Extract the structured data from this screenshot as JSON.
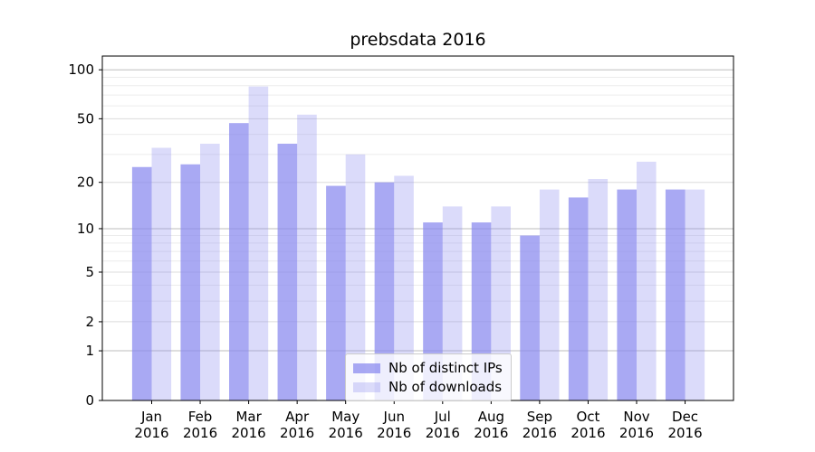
{
  "chart_data": {
    "type": "bar",
    "title": "prebsdata 2016",
    "categories": [
      "Jan",
      "Feb",
      "Mar",
      "Apr",
      "May",
      "Jun",
      "Jul",
      "Aug",
      "Sep",
      "Oct",
      "Nov",
      "Dec"
    ],
    "x_year_line": "2016",
    "series": [
      {
        "name": "Nb of distinct IPs",
        "color": "#8888ee",
        "alpha": 0.72,
        "values": [
          25,
          26,
          47,
          35,
          19,
          20,
          11,
          11,
          9,
          16,
          18,
          18
        ]
      },
      {
        "name": "Nb of downloads",
        "color": "#8888ee",
        "alpha": 0.3,
        "values": [
          33,
          35,
          79,
          53,
          30,
          22,
          14,
          14,
          18,
          21,
          27,
          18
        ]
      }
    ],
    "y_scale": "log1p",
    "y_ticks": [
      0,
      1,
      2,
      5,
      10,
      20,
      50,
      100
    ],
    "y_major_gridlines": [
      1,
      10,
      100
    ],
    "y_mid_gridlines": [
      2,
      5,
      20,
      50
    ],
    "y_minor_gridlines": [
      3,
      4,
      6,
      7,
      8,
      9,
      30,
      40,
      60,
      70,
      80,
      90
    ],
    "ylim": [
      0,
      121
    ],
    "grid": "horizontal",
    "legend_position": "lower center",
    "colors": {
      "major_grid": "#bdbdbd",
      "mid_grid": "#dcdcdc",
      "minor_grid": "#ececec",
      "spine": "#000000",
      "text": "#000000"
    }
  }
}
